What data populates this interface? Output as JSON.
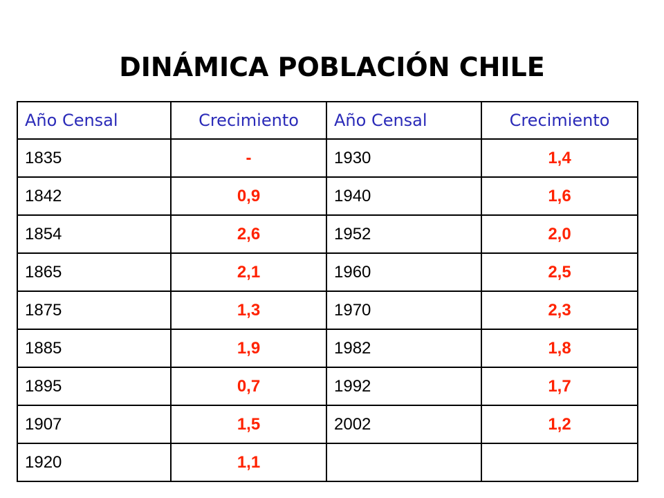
{
  "title": "DINÁMICA POBLACIÓN CHILE",
  "table": {
    "headers": [
      "Año Censal",
      "Crecimiento",
      "Año Censal",
      "Crecimiento"
    ],
    "rows": [
      [
        "1835",
        "-",
        "1930",
        "1,4"
      ],
      [
        "1842",
        "0,9",
        "1940",
        "1,6"
      ],
      [
        "1854",
        "2,6",
        "1952",
        "2,0"
      ],
      [
        "1865",
        "2,1",
        "1960",
        "2,5"
      ],
      [
        "1875",
        "1,3",
        "1970",
        "2,3"
      ],
      [
        "1885",
        "1,9",
        "1982",
        "1,8"
      ],
      [
        "1895",
        "0,7",
        "1992",
        "1,7"
      ],
      [
        "1907",
        "1,5",
        "2002",
        "1,2"
      ],
      [
        "1920",
        "1,1",
        "",
        ""
      ]
    ]
  },
  "colors": {
    "header_text": "#2a2ab8",
    "growth_text": "#ff2200",
    "year_text": "#000000",
    "border": "#000000"
  }
}
